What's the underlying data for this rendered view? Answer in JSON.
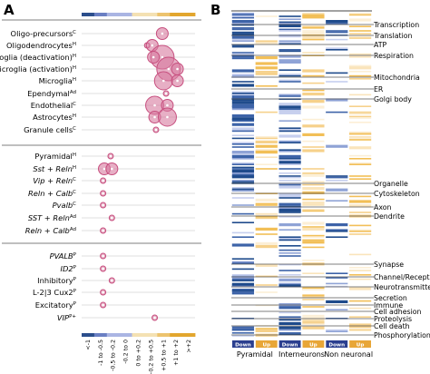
{
  "panels": {
    "left_letter": "A",
    "right_letter": "B"
  },
  "colors": {
    "down_dark": "#2b4e8c",
    "down_mid": "#6a7fc3",
    "down_light": "#aab5e3",
    "up_light": "#f4e1b3",
    "up_mid": "#ecc36e",
    "up_dark": "#e2a62e",
    "bubble": "#c74f7f",
    "bubble_fill": "#d77a9e"
  },
  "chart_data": [
    {
      "type": "scatter",
      "x_categories": [
        "<-1",
        "-1 to -0.5",
        "-0.5 to -0.2",
        "-0.2 to 0",
        "0 to +0.2",
        "+0.2 to +0.5",
        "+0.5 to +1",
        "+1 to +2",
        ">+2"
      ],
      "rows": [
        {
          "label": "Oligo-precursors",
          "sup": "C",
          "italic": false
        },
        {
          "label": "Oligodendrocytes",
          "sup": "H",
          "italic": false
        },
        {
          "label": "Microglia (deactivation)",
          "sup": "H",
          "italic": false
        },
        {
          "label": "Microglia (activation)",
          "sup": "H",
          "italic": false
        },
        {
          "label": "Microglia",
          "sup": "H",
          "italic": false
        },
        {
          "label": "Ependymal",
          "sup": "Ad",
          "italic": false
        },
        {
          "label": "Endothelial",
          "sup": "C",
          "italic": false
        },
        {
          "label": "Astrocytes",
          "sup": "H",
          "italic": false
        },
        {
          "label": "Granule cells",
          "sup": "C",
          "italic": false
        },
        {
          "label": "Pyramidal",
          "sup": "H",
          "italic": false
        },
        {
          "label": "Sst + Reln",
          "sup": "H",
          "italic": true
        },
        {
          "label": "Vip + Reln",
          "sup": "C",
          "italic": true
        },
        {
          "label": "Reln + Calb",
          "sup": "C",
          "italic": true
        },
        {
          "label": "Pvalb",
          "sup": "C",
          "italic": true
        },
        {
          "label": "SST + Reln",
          "sup": "Ad",
          "italic": true
        },
        {
          "label": "Reln + Calb",
          "sup": "Ad",
          "italic": true
        },
        {
          "label": "PVALB",
          "sup": "P",
          "italic": true
        },
        {
          "label": "ID2",
          "sup": "P",
          "italic": true
        },
        {
          "label": "Inhibitory",
          "sup": "P",
          "italic": false
        },
        {
          "label": "L-2|3 Cux2",
          "sup": "P",
          "italic": false
        },
        {
          "label": "Excitatory",
          "sup": "P",
          "italic": false
        },
        {
          "label": "VIP",
          "sup": "P+",
          "italic": true
        }
      ],
      "points": [
        {
          "row": 0,
          "x": 5.9,
          "size": 2
        },
        {
          "row": 1,
          "x": 4.7,
          "size": 1
        },
        {
          "row": 1,
          "x": 5.1,
          "size": 2
        },
        {
          "row": 2,
          "x": 5.9,
          "size": 4
        },
        {
          "row": 2,
          "x": 5.2,
          "size": 2
        },
        {
          "row": 3,
          "x": 6.4,
          "size": 4
        },
        {
          "row": 3,
          "x": 7.1,
          "size": 2
        },
        {
          "row": 4,
          "x": 6.0,
          "size": 3
        },
        {
          "row": 4,
          "x": 7.1,
          "size": 2
        },
        {
          "row": 5,
          "x": 6.2,
          "size": 1
        },
        {
          "row": 6,
          "x": 5.3,
          "size": 3
        },
        {
          "row": 6,
          "x": 6.3,
          "size": 2
        },
        {
          "row": 7,
          "x": 5.3,
          "size": 2
        },
        {
          "row": 7,
          "x": 6.3,
          "size": 3
        },
        {
          "row": 8,
          "x": 5.4,
          "size": 1
        },
        {
          "row": 9,
          "x": 1.8,
          "size": 1
        },
        {
          "row": 10,
          "x": 1.3,
          "size": 2
        },
        {
          "row": 10,
          "x": 1.9,
          "size": 2
        },
        {
          "row": 11,
          "x": 1.2,
          "size": 1
        },
        {
          "row": 12,
          "x": 1.2,
          "size": 1
        },
        {
          "row": 13,
          "x": 1.2,
          "size": 1
        },
        {
          "row": 14,
          "x": 1.9,
          "size": 1
        },
        {
          "row": 15,
          "x": 1.2,
          "size": 1
        },
        {
          "row": 16,
          "x": 1.2,
          "size": 1
        },
        {
          "row": 17,
          "x": 1.2,
          "size": 1
        },
        {
          "row": 18,
          "x": 1.9,
          "size": 1
        },
        {
          "row": 19,
          "x": 1.2,
          "size": 1
        },
        {
          "row": 20,
          "x": 1.2,
          "size": 1
        },
        {
          "row": 21,
          "x": 5.3,
          "size": 1
        }
      ]
    },
    {
      "type": "heatmap",
      "columns": [
        "Down",
        "Up",
        "Down",
        "Up",
        "Down",
        "Up"
      ],
      "groups": [
        "Pyramidal",
        "Interneurons",
        "Non neuronal"
      ],
      "categories": [
        "Transcription",
        "Translation",
        "ATP",
        "Respiration",
        "Mitochondria",
        "ER",
        "Golgi body",
        "Organelle",
        "Cytoskeleton",
        "Axon",
        "Dendrite",
        "Synapse",
        "Channel/Receptor",
        "Neurotransmitter",
        "Secretion",
        "Immune",
        "Cell adhesion",
        "Proteolysis",
        "Cell death",
        "Phosphorylation"
      ]
    }
  ]
}
